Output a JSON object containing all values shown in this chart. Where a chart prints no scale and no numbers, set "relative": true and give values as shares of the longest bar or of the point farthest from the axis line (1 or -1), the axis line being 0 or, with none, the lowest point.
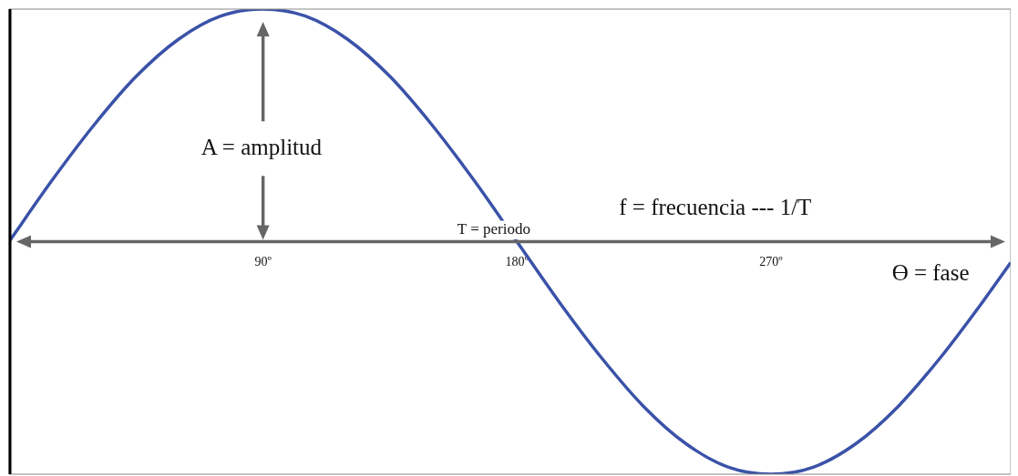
{
  "chart_data": {
    "type": "line",
    "relative": true,
    "x": [
      0,
      15,
      30,
      45,
      60,
      75,
      90,
      105,
      120,
      135,
      150,
      165,
      180,
      195,
      210,
      225,
      240,
      255,
      270,
      285,
      300,
      315,
      330,
      345,
      355
    ],
    "series": [
      {
        "color": "#3a52a8",
        "values": [
          0,
          0.26,
          0.5,
          0.71,
          0.87,
          0.97,
          1,
          0.97,
          0.87,
          0.71,
          0.5,
          0.26,
          0,
          -0.26,
          -0.5,
          -0.71,
          -0.87,
          -0.97,
          -1,
          -0.97,
          -0.87,
          -0.71,
          -0.5,
          -0.26,
          -0.09
        ]
      }
    ],
    "xlim": [
      0,
      355
    ],
    "xticks": [
      {
        "value": 90,
        "label": "90º"
      },
      {
        "value": 180,
        "label": "180º"
      },
      {
        "value": 270,
        "label": "270º"
      }
    ],
    "annotations": [
      "A = amplitud",
      "T = periodo",
      "f = frecuencia --- 1/T",
      "ϴ = fase"
    ],
    "grid": false,
    "legend": false,
    "marker": "none",
    "line_style": "solid"
  }
}
